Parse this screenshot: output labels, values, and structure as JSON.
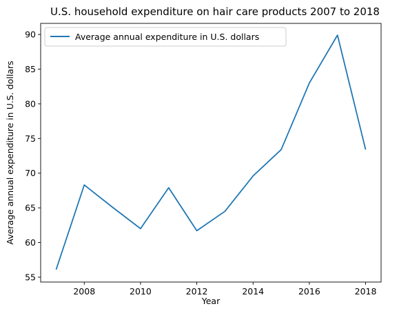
{
  "chart_data": {
    "type": "line",
    "title": "U.S. household expenditure on hair care products 2007 to 2018",
    "xlabel": "Year",
    "ylabel": "Average annual expenditure in U.S. dollars",
    "x": [
      2007,
      2008,
      2009,
      2010,
      2011,
      2012,
      2013,
      2014,
      2015,
      2016,
      2017,
      2018
    ],
    "series": [
      {
        "name": "Average annual expenditure in U.S. dollars",
        "color": "#1f77b4",
        "values": [
          56.1,
          68.3,
          65.1,
          62.0,
          67.9,
          61.7,
          64.5,
          69.6,
          73.4,
          83.0,
          89.9,
          73.4
        ]
      }
    ],
    "xlim": [
      2006.45,
      2018.55
    ],
    "ylim": [
      54.3,
      91.6
    ],
    "xticks": [
      "2008",
      "2010",
      "2012",
      "2014",
      "2016",
      "2018"
    ],
    "yticks": [
      "55",
      "60",
      "65",
      "70",
      "75",
      "80",
      "85",
      "90"
    ],
    "legend": "upper-left",
    "grid": false
  }
}
